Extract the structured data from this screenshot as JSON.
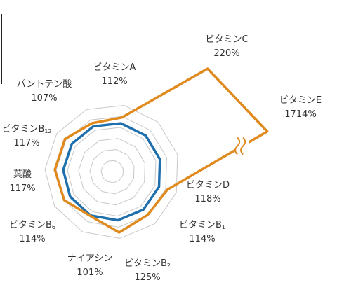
{
  "chart_data": {
    "type": "radar",
    "unit": "%",
    "reference_value": 100,
    "grid_rings": 6,
    "colors": {
      "baseline": "#1f6fad",
      "series": "#e08a1e",
      "grid": "#c8c8c8"
    },
    "axes": [
      {
        "key": "vitamin_a",
        "label": "ビタミンA",
        "value": 112,
        "display": "112%"
      },
      {
        "key": "vitamin_c",
        "label": "ビタミンC",
        "value": 220,
        "display": "220%"
      },
      {
        "key": "vitamin_e",
        "label": "ビタミンE",
        "value": 1714,
        "display": "1714%",
        "axis_break": true
      },
      {
        "key": "vitamin_d",
        "label": "ビタミンD",
        "value": 118,
        "display": "118%"
      },
      {
        "key": "vitamin_b1",
        "label": "ビタミンB",
        "sub": "1",
        "value": 114,
        "display": "114%"
      },
      {
        "key": "vitamin_b2",
        "label": "ビタミンB",
        "sub": "2",
        "value": 125,
        "display": "125%"
      },
      {
        "key": "niacin",
        "label": "ナイアシン",
        "value": 101,
        "display": "101%"
      },
      {
        "key": "vitamin_b6",
        "label": "ビタミンB",
        "sub": "6",
        "value": 114,
        "display": "114%"
      },
      {
        "key": "folate",
        "label": "葉酸",
        "value": 117,
        "display": "117%"
      },
      {
        "key": "vitamin_b12",
        "label": "ビタミンB",
        "sub": "12",
        "value": 117,
        "display": "117%"
      },
      {
        "key": "pantothenic",
        "label": "パントテン酸",
        "value": 107,
        "display": "107%"
      }
    ]
  }
}
